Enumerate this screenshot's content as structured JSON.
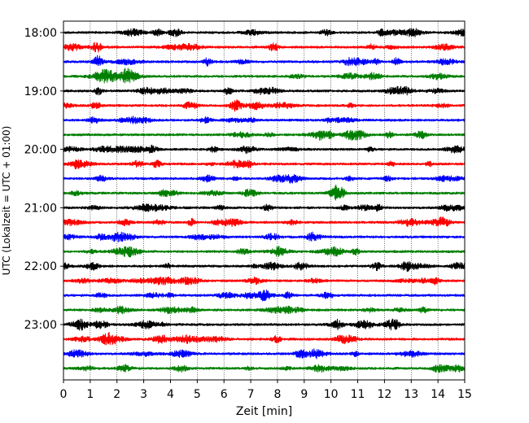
{
  "chart_data": {
    "type": "line",
    "xlabel": "Zeit  [min]",
    "ylabel": "UTC (Lokalzeit = UTC + 01:00)",
    "xlim": [
      0,
      15
    ],
    "x_ticks": [
      "0",
      "1",
      "2",
      "3",
      "4",
      "5",
      "6",
      "7",
      "8",
      "9",
      "10",
      "11",
      "12",
      "13",
      "14",
      "15"
    ],
    "y_tick_labels": [
      "18:00",
      "19:00",
      "20:00",
      "21:00",
      "22:00",
      "23:00"
    ],
    "grid": "vertical dotted at each minute",
    "trace_interval_minutes": 15,
    "trace_colors": [
      "#000000",
      "#ff0000",
      "#0000ff",
      "#007f00"
    ],
    "series": [
      {
        "start": "18:00",
        "color": "#000000"
      },
      {
        "start": "18:15",
        "color": "#ff0000"
      },
      {
        "start": "18:30",
        "color": "#0000ff"
      },
      {
        "start": "18:45",
        "color": "#007f00"
      },
      {
        "start": "19:00",
        "color": "#000000"
      },
      {
        "start": "19:15",
        "color": "#ff0000"
      },
      {
        "start": "19:30",
        "color": "#0000ff"
      },
      {
        "start": "19:45",
        "color": "#007f00"
      },
      {
        "start": "20:00",
        "color": "#000000"
      },
      {
        "start": "20:15",
        "color": "#ff0000"
      },
      {
        "start": "20:30",
        "color": "#0000ff"
      },
      {
        "start": "20:45",
        "color": "#007f00"
      },
      {
        "start": "21:00",
        "color": "#000000"
      },
      {
        "start": "21:15",
        "color": "#ff0000"
      },
      {
        "start": "21:30",
        "color": "#0000ff"
      },
      {
        "start": "21:45",
        "color": "#007f00"
      },
      {
        "start": "22:00",
        "color": "#000000"
      },
      {
        "start": "22:15",
        "color": "#ff0000"
      },
      {
        "start": "22:30",
        "color": "#0000ff"
      },
      {
        "start": "22:45",
        "color": "#007f00"
      },
      {
        "start": "23:00",
        "color": "#000000"
      },
      {
        "start": "23:15",
        "color": "#ff0000"
      },
      {
        "start": "23:30",
        "color": "#0000ff"
      },
      {
        "start": "23:45",
        "color": "#007f00"
      }
    ]
  }
}
